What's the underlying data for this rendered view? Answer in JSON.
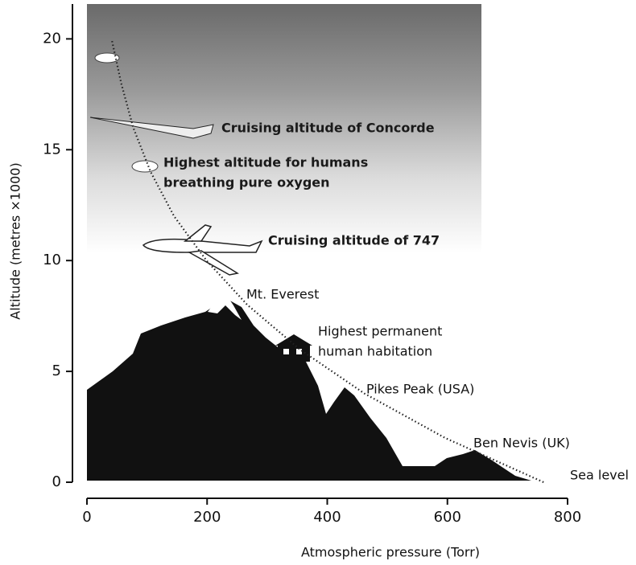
{
  "chart_data": {
    "type": "line",
    "x_label": "Atmospheric pressure (Torr)",
    "y_label": "Altitude (metres ×1000)",
    "x": [
      760,
      596,
      462,
      354,
      267,
      199,
      145,
      106,
      77,
      57,
      41
    ],
    "values": [
      0,
      2,
      4,
      6,
      8,
      10,
      12,
      14,
      16,
      18,
      20
    ],
    "color": "#222222",
    "line_style": "dotted",
    "xlim": [
      0,
      800
    ],
    "ylim": [
      0,
      21.5
    ],
    "xticks": [
      0,
      200,
      400,
      600,
      800
    ],
    "yticks": [
      0,
      5,
      10,
      15,
      20
    ],
    "annotations": [
      [
        "Cruising altitude of Concorde"
      ],
      [
        "Highest altitude for humans",
        "breathing pure oxygen"
      ],
      [
        "Cruising altitude of 747"
      ],
      [
        "Mt. Everest"
      ],
      [
        "Highest permanent",
        "human habitation"
      ],
      [
        "Pikes Peak (USA)"
      ],
      [
        "Ben Nevis (UK)"
      ],
      [
        "Sea level"
      ]
    ]
  }
}
